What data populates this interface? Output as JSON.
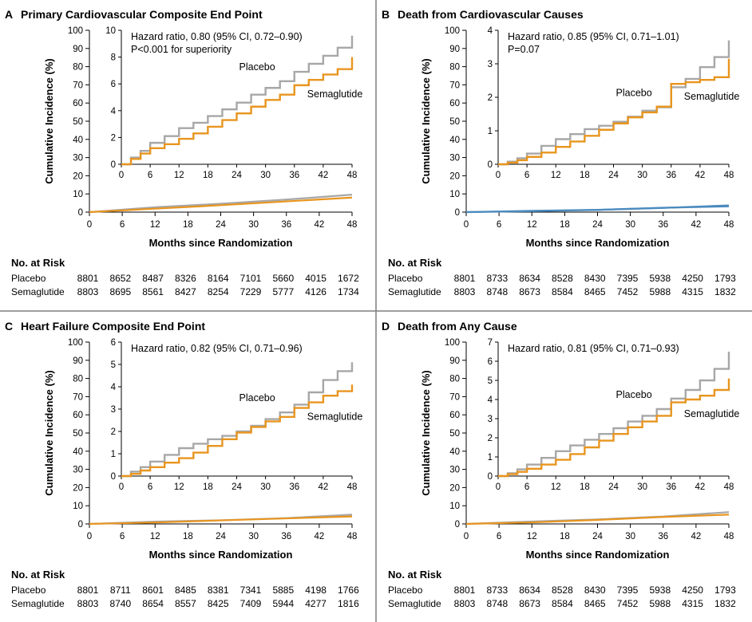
{
  "colors": {
    "placebo": "#a7a7a7",
    "semaglutide": "#e8951f",
    "panel_b_inset": "#4b8bbf",
    "panel_border": "#7f7f7f",
    "axis": "#000000"
  },
  "x_axis": {
    "label": "Months since Randomization",
    "ticks": [
      0,
      6,
      12,
      18,
      24,
      30,
      36,
      42,
      48
    ]
  },
  "risk_table": {
    "header": "No. at Risk",
    "row_labels": [
      "Placebo",
      "Semaglutide"
    ]
  },
  "chart_data": [
    {
      "panel_letter": "A",
      "title": "Primary Cardiovascular Composite End Point",
      "type": "line",
      "hazard_ratio_lines": [
        "Hazard ratio, 0.80 (95% CI, 0.72–0.90)",
        "P<0.001 for superiority"
      ],
      "ylabel": "Cumulative Incidence (%)",
      "xlabel": "Months since Randomization",
      "inset_ylim": [
        0,
        10
      ],
      "inset_yticks": [
        0,
        2,
        4,
        6,
        8,
        10
      ],
      "outer_ylim": [
        0,
        100
      ],
      "outer_yticks": [
        0,
        10,
        20,
        30,
        40,
        50,
        60,
        70,
        80,
        90,
        100
      ],
      "series_labels": [
        "Placebo",
        "Semaglutide"
      ],
      "series": [
        {
          "name": "Placebo",
          "x": [
            0,
            2,
            4,
            6,
            9,
            12,
            15,
            18,
            21,
            24,
            27,
            30,
            33,
            36,
            39,
            42,
            45,
            48
          ],
          "values": [
            0,
            0.5,
            1.0,
            1.6,
            2.1,
            2.7,
            3.1,
            3.6,
            4.1,
            4.6,
            5.2,
            5.7,
            6.2,
            6.9,
            7.5,
            8.1,
            8.7,
            9.6
          ]
        },
        {
          "name": "Semaglutide",
          "x": [
            0,
            2,
            4,
            6,
            9,
            12,
            15,
            18,
            21,
            24,
            27,
            30,
            33,
            36,
            39,
            42,
            45,
            48
          ],
          "values": [
            0,
            0.4,
            0.8,
            1.2,
            1.5,
            1.9,
            2.3,
            2.8,
            3.3,
            3.8,
            4.3,
            4.8,
            5.2,
            5.9,
            6.3,
            6.7,
            7.1,
            8.0
          ]
        }
      ],
      "outer_series": [
        {
          "name": "Placebo",
          "x": [
            0,
            12,
            24,
            36,
            48
          ],
          "values": [
            0,
            2.7,
            4.6,
            6.9,
            9.6
          ]
        },
        {
          "name": "Semaglutide",
          "x": [
            0,
            12,
            24,
            36,
            48
          ],
          "values": [
            0,
            1.9,
            3.8,
            5.9,
            8.0
          ]
        }
      ],
      "at_risk": {
        "Placebo": [
          "8801",
          "8652",
          "8487",
          "8326",
          "8164",
          "7101",
          "5660",
          "4015",
          "1672"
        ],
        "Semaglutide": [
          "8803",
          "8695",
          "8561",
          "8427",
          "8254",
          "7229",
          "5777",
          "4126",
          "1734"
        ]
      }
    },
    {
      "panel_letter": "B",
      "title": "Death from Cardiovascular Causes",
      "type": "line",
      "hazard_ratio_lines": [
        "Hazard ratio, 0.85 (95% CI, 0.71–1.01)",
        "P=0.07"
      ],
      "ylabel": "Cumulative Incidence (%)",
      "xlabel": "Months since Randomization",
      "inset_ylim": [
        0,
        4
      ],
      "inset_yticks": [
        0,
        1,
        2,
        3,
        4
      ],
      "outer_ylim": [
        0,
        100
      ],
      "outer_yticks": [
        0,
        10,
        20,
        30,
        40,
        50,
        60,
        70,
        80,
        90,
        100
      ],
      "series_labels": [
        "Placebo",
        "Semaglutide"
      ],
      "series": [
        {
          "name": "Placebo",
          "x": [
            0,
            2,
            4,
            6,
            9,
            12,
            15,
            18,
            21,
            24,
            27,
            30,
            33,
            36,
            39,
            42,
            45,
            48
          ],
          "values": [
            0,
            0.08,
            0.18,
            0.32,
            0.55,
            0.75,
            0.9,
            1.05,
            1.15,
            1.27,
            1.42,
            1.6,
            1.7,
            2.3,
            2.55,
            2.9,
            3.2,
            3.7
          ]
        },
        {
          "name": "Semaglutide",
          "x": [
            0,
            2,
            4,
            6,
            9,
            12,
            15,
            18,
            21,
            24,
            27,
            30,
            33,
            36,
            39,
            42,
            45,
            48
          ],
          "values": [
            0,
            0.05,
            0.12,
            0.22,
            0.35,
            0.52,
            0.68,
            0.85,
            1.03,
            1.22,
            1.4,
            1.55,
            1.72,
            2.4,
            2.45,
            2.52,
            2.6,
            3.15
          ]
        }
      ],
      "outer_series": [
        {
          "name": "Placebo",
          "x": [
            0,
            12,
            24,
            36,
            48
          ],
          "values": [
            0,
            0.75,
            1.27,
            2.3,
            3.7
          ]
        },
        {
          "name": "Semaglutide",
          "x": [
            0,
            12,
            24,
            36,
            48
          ],
          "values": [
            0,
            0.52,
            1.22,
            2.4,
            3.15
          ]
        }
      ],
      "at_risk": {
        "Placebo": [
          "8801",
          "8733",
          "8634",
          "8528",
          "8430",
          "7395",
          "5938",
          "4250",
          "1793"
        ],
        "Semaglutide": [
          "8803",
          "8748",
          "8673",
          "8584",
          "8465",
          "7452",
          "5988",
          "4315",
          "1832"
        ]
      }
    },
    {
      "panel_letter": "C",
      "title": "Heart Failure Composite End Point",
      "type": "line",
      "hazard_ratio_lines": [
        "Hazard ratio, 0.82 (95% CI, 0.71–0.96)"
      ],
      "ylabel": "Cumulative Incidence (%)",
      "xlabel": "Months since Randomization",
      "inset_ylim": [
        0,
        6
      ],
      "inset_yticks": [
        0,
        1,
        2,
        3,
        4,
        5,
        6
      ],
      "outer_ylim": [
        0,
        100
      ],
      "outer_yticks": [
        0,
        10,
        20,
        30,
        40,
        50,
        60,
        70,
        80,
        90,
        100
      ],
      "series_labels": [
        "Placebo",
        "Semaglutide"
      ],
      "series": [
        {
          "name": "Placebo",
          "x": [
            0,
            2,
            4,
            6,
            9,
            12,
            15,
            18,
            21,
            24,
            27,
            30,
            33,
            36,
            39,
            42,
            45,
            48
          ],
          "values": [
            0,
            0.2,
            0.4,
            0.65,
            0.95,
            1.25,
            1.45,
            1.65,
            1.8,
            2.0,
            2.25,
            2.55,
            2.85,
            3.2,
            3.75,
            4.3,
            4.7,
            5.1
          ]
        },
        {
          "name": "Semaglutide",
          "x": [
            0,
            2,
            4,
            6,
            9,
            12,
            15,
            18,
            21,
            24,
            27,
            30,
            33,
            36,
            39,
            42,
            45,
            48
          ],
          "values": [
            0,
            0.1,
            0.25,
            0.4,
            0.6,
            0.8,
            1.05,
            1.35,
            1.65,
            1.95,
            2.2,
            2.45,
            2.65,
            3.05,
            3.3,
            3.6,
            3.8,
            4.1
          ]
        }
      ],
      "outer_series": [
        {
          "name": "Placebo",
          "x": [
            0,
            12,
            24,
            36,
            48
          ],
          "values": [
            0,
            1.25,
            2.0,
            3.2,
            5.1
          ]
        },
        {
          "name": "Semaglutide",
          "x": [
            0,
            12,
            24,
            36,
            48
          ],
          "values": [
            0,
            0.8,
            1.95,
            3.05,
            4.1
          ]
        }
      ],
      "at_risk": {
        "Placebo": [
          "8801",
          "8711",
          "8601",
          "8485",
          "8381",
          "7341",
          "5885",
          "4198",
          "1766"
        ],
        "Semaglutide": [
          "8803",
          "8740",
          "8654",
          "8557",
          "8425",
          "7409",
          "5944",
          "4277",
          "1816"
        ]
      }
    },
    {
      "panel_letter": "D",
      "title": "Death from Any Cause",
      "type": "line",
      "hazard_ratio_lines": [
        "Hazard ratio, 0.81 (95% CI, 0.71–0.93)"
      ],
      "ylabel": "Cumulative Incidence (%)",
      "xlabel": "Months since Randomization",
      "inset_ylim": [
        0,
        7
      ],
      "inset_yticks": [
        0,
        1,
        2,
        3,
        4,
        5,
        6,
        7
      ],
      "outer_ylim": [
        0,
        100
      ],
      "outer_yticks": [
        0,
        10,
        20,
        30,
        40,
        50,
        60,
        70,
        80,
        90,
        100
      ],
      "series_labels": [
        "Placebo",
        "Semaglutide"
      ],
      "series": [
        {
          "name": "Placebo",
          "x": [
            0,
            2,
            4,
            6,
            9,
            12,
            15,
            18,
            21,
            24,
            27,
            30,
            33,
            36,
            39,
            42,
            45,
            48
          ],
          "values": [
            0,
            0.15,
            0.35,
            0.6,
            0.95,
            1.3,
            1.6,
            1.9,
            2.2,
            2.5,
            2.85,
            3.15,
            3.5,
            4.05,
            4.5,
            5.0,
            5.6,
            6.5
          ]
        },
        {
          "name": "Semaglutide",
          "x": [
            0,
            2,
            4,
            6,
            9,
            12,
            15,
            18,
            21,
            24,
            27,
            30,
            33,
            36,
            39,
            42,
            45,
            48
          ],
          "values": [
            0,
            0.1,
            0.22,
            0.38,
            0.6,
            0.85,
            1.15,
            1.5,
            1.85,
            2.2,
            2.55,
            2.85,
            3.15,
            3.85,
            4.0,
            4.2,
            4.5,
            5.1
          ]
        }
      ],
      "outer_series": [
        {
          "name": "Placebo",
          "x": [
            0,
            12,
            24,
            36,
            48
          ],
          "values": [
            0,
            1.3,
            2.5,
            4.05,
            6.5
          ]
        },
        {
          "name": "Semaglutide",
          "x": [
            0,
            12,
            24,
            36,
            48
          ],
          "values": [
            0,
            0.85,
            2.2,
            3.85,
            5.1
          ]
        }
      ],
      "at_risk": {
        "Placebo": [
          "8801",
          "8733",
          "8634",
          "8528",
          "8430",
          "7395",
          "5938",
          "4250",
          "1793"
        ],
        "Semaglutide": [
          "8803",
          "8748",
          "8673",
          "8584",
          "8465",
          "7452",
          "5988",
          "4315",
          "1832"
        ]
      }
    }
  ]
}
